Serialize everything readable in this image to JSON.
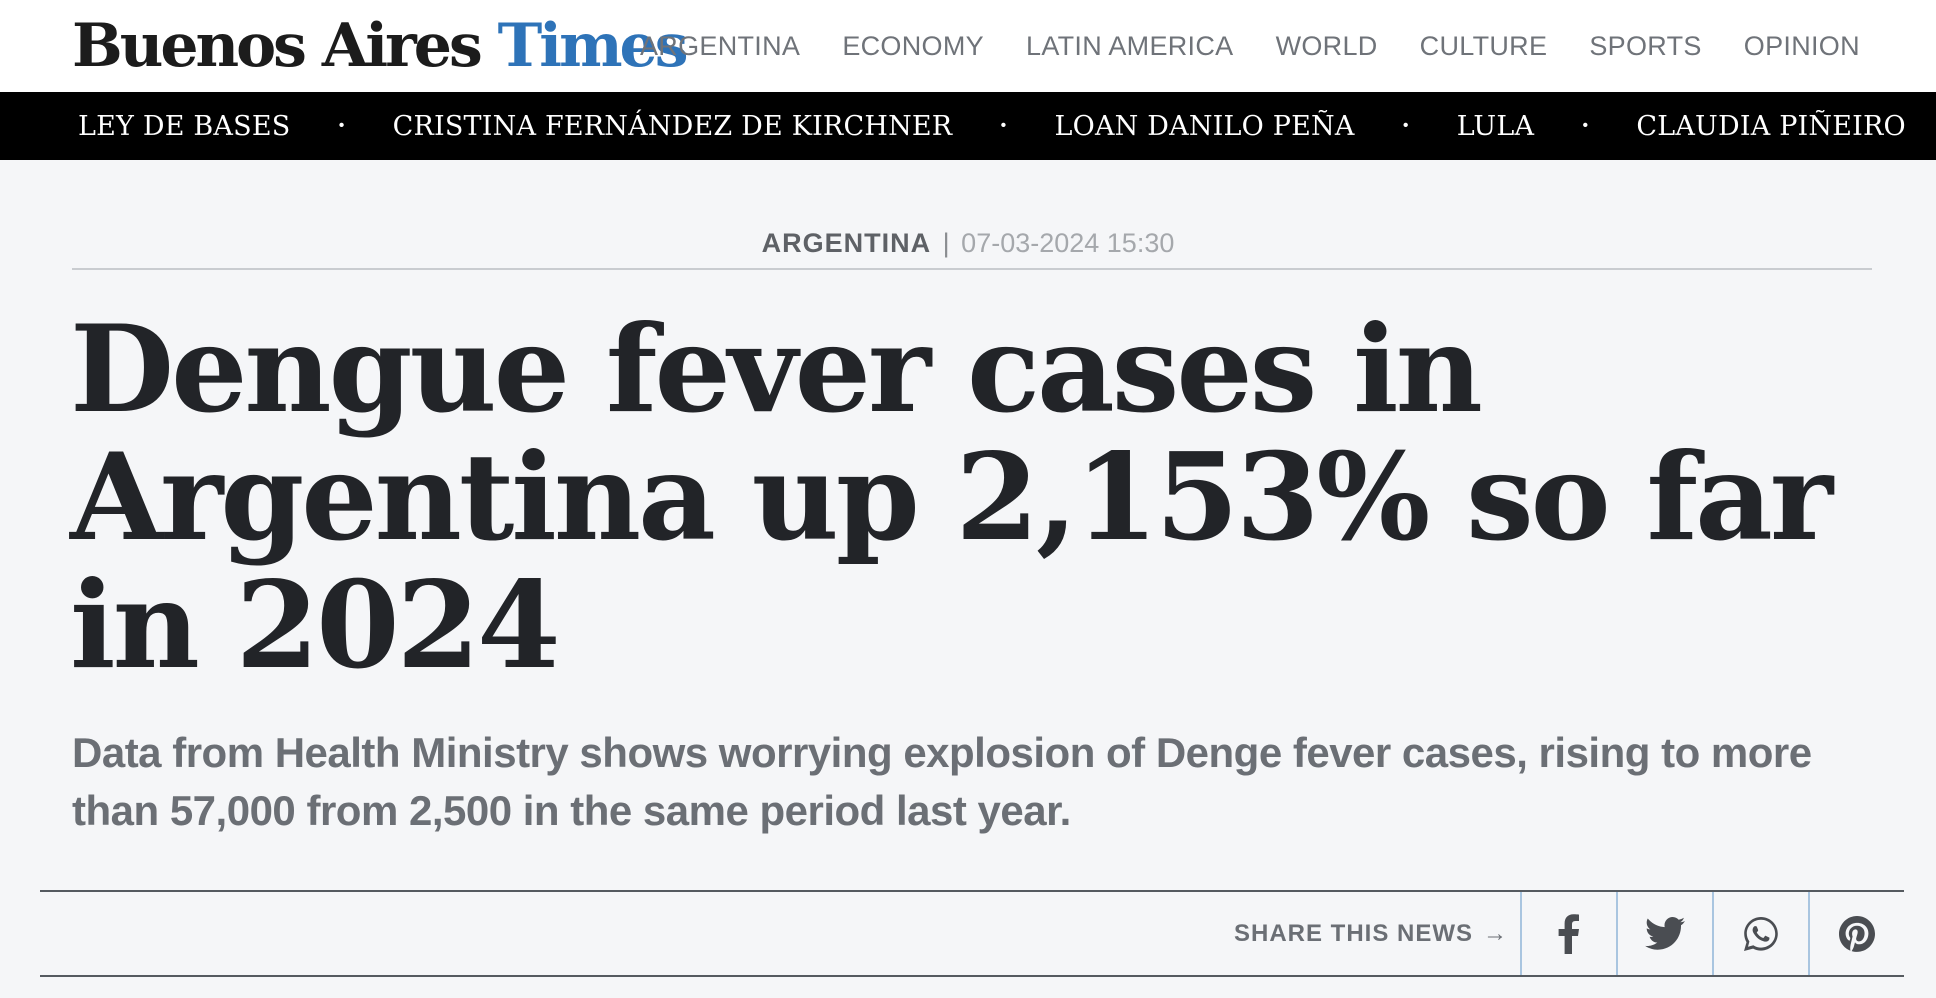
{
  "site": {
    "name_part1": "Buenos Aires",
    "name_part2": "Times",
    "brand_color": "#2e73b8"
  },
  "nav": {
    "items": [
      {
        "label": "ARGENTINA"
      },
      {
        "label": "ECONOMY"
      },
      {
        "label": "LATIN AMERICA"
      },
      {
        "label": "WORLD"
      },
      {
        "label": "CULTURE"
      },
      {
        "label": "SPORTS"
      },
      {
        "label": "OPINION"
      }
    ]
  },
  "tags": {
    "items": [
      {
        "label": "LEY DE BASES"
      },
      {
        "label": "CRISTINA FERNÁNDEZ DE KIRCHNER"
      },
      {
        "label": "LOAN DANILO PEÑA"
      },
      {
        "label": "LULA"
      },
      {
        "label": "CLAUDIA PIÑEIRO"
      }
    ],
    "separator": "•"
  },
  "article": {
    "section": "ARGENTINA",
    "separator": "|",
    "date": "07-03-2024 15:30",
    "headline": "Dengue fever cases in Argentina up 2,153% so far in 2024",
    "subhead": "Data from Health Ministry shows worrying explosion of Denge fever cases, rising to more than 57,000 from 2,500 in the same period last year."
  },
  "share": {
    "label": "SHARE THIS NEWS",
    "arrow": "→",
    "buttons": [
      {
        "icon": "facebook-icon"
      },
      {
        "icon": "twitter-icon"
      },
      {
        "icon": "whatsapp-icon"
      },
      {
        "icon": "pinterest-icon"
      }
    ]
  }
}
